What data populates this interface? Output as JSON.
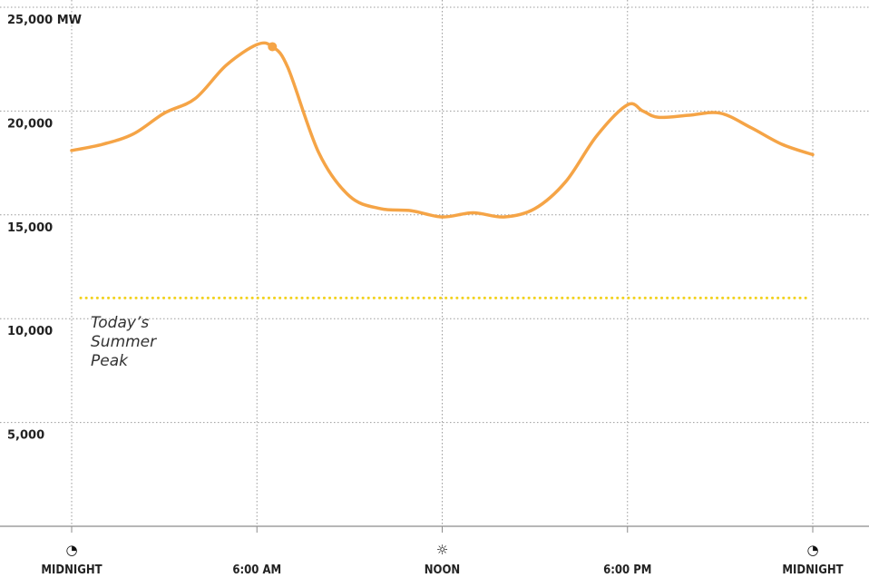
{
  "chart_data": {
    "type": "line",
    "x_labels": [
      "MIDNIGHT",
      "6:00 AM",
      "NOON",
      "6:00 PM",
      "MIDNIGHT"
    ],
    "x_icons": [
      "moon-icon",
      "",
      "sun-icon",
      "",
      "moon-icon"
    ],
    "x_icon_glyphs": [
      "◔",
      "",
      "☼",
      "",
      "◔"
    ],
    "y_ticks": [
      5000,
      10000,
      15000,
      20000,
      25000
    ],
    "y_tick_labels": [
      "5,000",
      "10,000",
      "15,000",
      "20,000",
      "25,000 MW"
    ],
    "xlim": [
      0,
      24
    ],
    "ylim": [
      0,
      25000
    ],
    "grid": true,
    "series": [
      {
        "color": "#f5a446",
        "x": [
          0,
          1,
          2,
          3,
          4,
          5,
          6,
          6.5,
          7,
          8,
          9,
          10,
          11,
          12,
          13,
          14,
          15,
          16,
          17,
          18,
          18.5,
          19,
          20,
          21,
          22,
          23,
          24
        ],
        "y": [
          18100,
          18400,
          18900,
          19900,
          20600,
          22200,
          23200,
          23100,
          22100,
          18000,
          15900,
          15300,
          15200,
          14900,
          15100,
          14900,
          15300,
          16600,
          18800,
          20300,
          20000,
          19700,
          19800,
          19900,
          19200,
          18400,
          17900
        ],
        "peak_marker": {
          "x": 6.5,
          "y": 23100
        }
      }
    ],
    "reference_line": {
      "y": 11000,
      "color": "#f2d21e",
      "label_lines": [
        "Today’s",
        "Summer",
        "Peak"
      ]
    }
  }
}
